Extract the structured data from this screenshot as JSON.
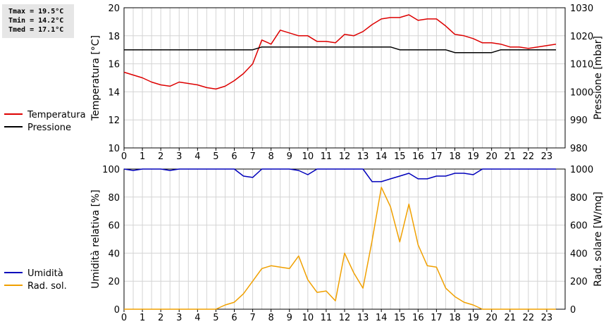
{
  "stats": {
    "tmax": "Tmax = 19.5°C",
    "tmin": "Tmin = 14.2°C",
    "tmed": "Tmed = 17.1°C"
  },
  "colors": {
    "temperature": "#dd0000",
    "pressure": "#000000",
    "humidity": "#0000bb",
    "radiation": "#f0a000",
    "grid": "#d4d4d4"
  },
  "chart_data": [
    {
      "type": "line",
      "x_ticks": [
        "0",
        "1",
        "2",
        "3",
        "4",
        "5",
        "6",
        "7",
        "8",
        "9",
        "10",
        "11",
        "12",
        "13",
        "14",
        "15",
        "16",
        "17",
        "18",
        "19",
        "20",
        "21",
        "22",
        "23"
      ],
      "xlim": [
        0,
        24
      ],
      "ylabel_left": "Temperatura [°C]",
      "ylabel_right": "Pressione [mbar]",
      "ylim_left": [
        10,
        20
      ],
      "ylim_right": [
        980,
        1030
      ],
      "yticks_left": [
        "10",
        "12",
        "14",
        "16",
        "18",
        "20"
      ],
      "yticks_right": [
        "980",
        "990",
        "1000",
        "1010",
        "1020",
        "1030"
      ],
      "legend": [
        "Temperatura",
        "Pressione"
      ],
      "grid": true,
      "series": [
        {
          "name": "Temperatura",
          "axis": "left",
          "x": [
            0,
            0.5,
            1,
            1.5,
            2,
            2.5,
            3,
            3.5,
            4,
            4.5,
            5,
            5.5,
            6,
            6.5,
            7,
            7.5,
            8,
            8.5,
            9,
            9.5,
            10,
            10.5,
            11,
            11.5,
            12,
            12.5,
            13,
            13.5,
            14,
            14.5,
            15,
            15.5,
            16,
            16.5,
            17,
            17.5,
            18,
            18.5,
            19,
            19.5,
            20,
            20.5,
            21,
            21.5,
            22,
            22.5,
            23,
            23.5
          ],
          "y": [
            15.4,
            15.2,
            15.0,
            14.7,
            14.5,
            14.4,
            14.7,
            14.6,
            14.5,
            14.3,
            14.2,
            14.4,
            14.8,
            15.3,
            16.0,
            17.7,
            17.4,
            18.4,
            18.2,
            18.0,
            18.0,
            17.6,
            17.6,
            17.5,
            18.1,
            18.0,
            18.3,
            18.8,
            19.2,
            19.3,
            19.3,
            19.5,
            19.1,
            19.2,
            19.2,
            18.7,
            18.1,
            18.0,
            17.8,
            17.5,
            17.5,
            17.4,
            17.2,
            17.2,
            17.1,
            17.2,
            17.3,
            17.4
          ]
        },
        {
          "name": "Pressione",
          "axis": "right",
          "x": [
            0,
            7,
            7.5,
            14.5,
            15,
            17.5,
            18,
            20,
            20.5,
            23.5
          ],
          "y": [
            1015,
            1015,
            1016,
            1016,
            1015,
            1015,
            1014,
            1014,
            1015,
            1015
          ]
        }
      ]
    },
    {
      "type": "line",
      "x_ticks": [
        "0",
        "1",
        "2",
        "3",
        "4",
        "5",
        "6",
        "7",
        "8",
        "9",
        "10",
        "11",
        "12",
        "13",
        "14",
        "15",
        "16",
        "17",
        "18",
        "19",
        "20",
        "21",
        "22",
        "23"
      ],
      "xlim": [
        0,
        24
      ],
      "ylabel_left": "Umidità relativa [%]",
      "ylabel_right": "Rad. solare [W/mq]",
      "ylim_left": [
        0,
        100
      ],
      "ylim_right": [
        0,
        1000
      ],
      "yticks_left": [
        "0",
        "20",
        "40",
        "60",
        "80",
        "100"
      ],
      "yticks_right": [
        "0",
        "200",
        "400",
        "600",
        "800",
        "1000"
      ],
      "legend": [
        "Umidità",
        "Rad. sol."
      ],
      "grid": true,
      "series": [
        {
          "name": "Umidità",
          "axis": "left",
          "x": [
            0,
            0.5,
            1,
            1.5,
            2,
            2.5,
            3,
            3.5,
            4,
            4.5,
            5,
            5.5,
            6,
            6.5,
            7,
            7.5,
            8,
            8.5,
            9,
            9.5,
            10,
            10.5,
            11,
            11.5,
            12,
            12.5,
            13,
            13.5,
            14,
            14.5,
            15,
            15.5,
            16,
            16.5,
            17,
            17.5,
            18,
            18.5,
            19,
            19.5,
            20,
            20.5,
            21,
            21.5,
            22,
            22.5,
            23,
            23.5
          ],
          "y": [
            100,
            99,
            100,
            100,
            100,
            99,
            100,
            100,
            100,
            100,
            100,
            100,
            100,
            95,
            94,
            100,
            100,
            100,
            100,
            99,
            96,
            100,
            100,
            100,
            100,
            100,
            100,
            91,
            91,
            93,
            95,
            97,
            93,
            93,
            95,
            95,
            97,
            97,
            96,
            100,
            100,
            100,
            100,
            100,
            100,
            100,
            100,
            100
          ]
        },
        {
          "name": "Rad. sol.",
          "axis": "right",
          "x": [
            0,
            0.5,
            1,
            1.5,
            2,
            2.5,
            3,
            3.5,
            4,
            4.5,
            5,
            5.5,
            6,
            6.5,
            7,
            7.5,
            8,
            8.5,
            9,
            9.5,
            10,
            10.5,
            11,
            11.5,
            12,
            12.5,
            13,
            13.5,
            14,
            14.5,
            15,
            15.5,
            16,
            16.5,
            17,
            17.5,
            18,
            18.5,
            19,
            19.5,
            20,
            20.5,
            21,
            21.5,
            22,
            22.5,
            23,
            23.5
          ],
          "y": [
            0,
            0,
            0,
            0,
            0,
            0,
            0,
            0,
            0,
            0,
            0,
            30,
            50,
            110,
            200,
            290,
            310,
            300,
            290,
            380,
            210,
            120,
            130,
            60,
            400,
            260,
            150,
            490,
            870,
            730,
            480,
            750,
            460,
            310,
            300,
            150,
            90,
            50,
            30,
            0,
            0,
            0,
            0,
            0,
            0,
            0,
            0,
            0
          ]
        }
      ]
    }
  ]
}
